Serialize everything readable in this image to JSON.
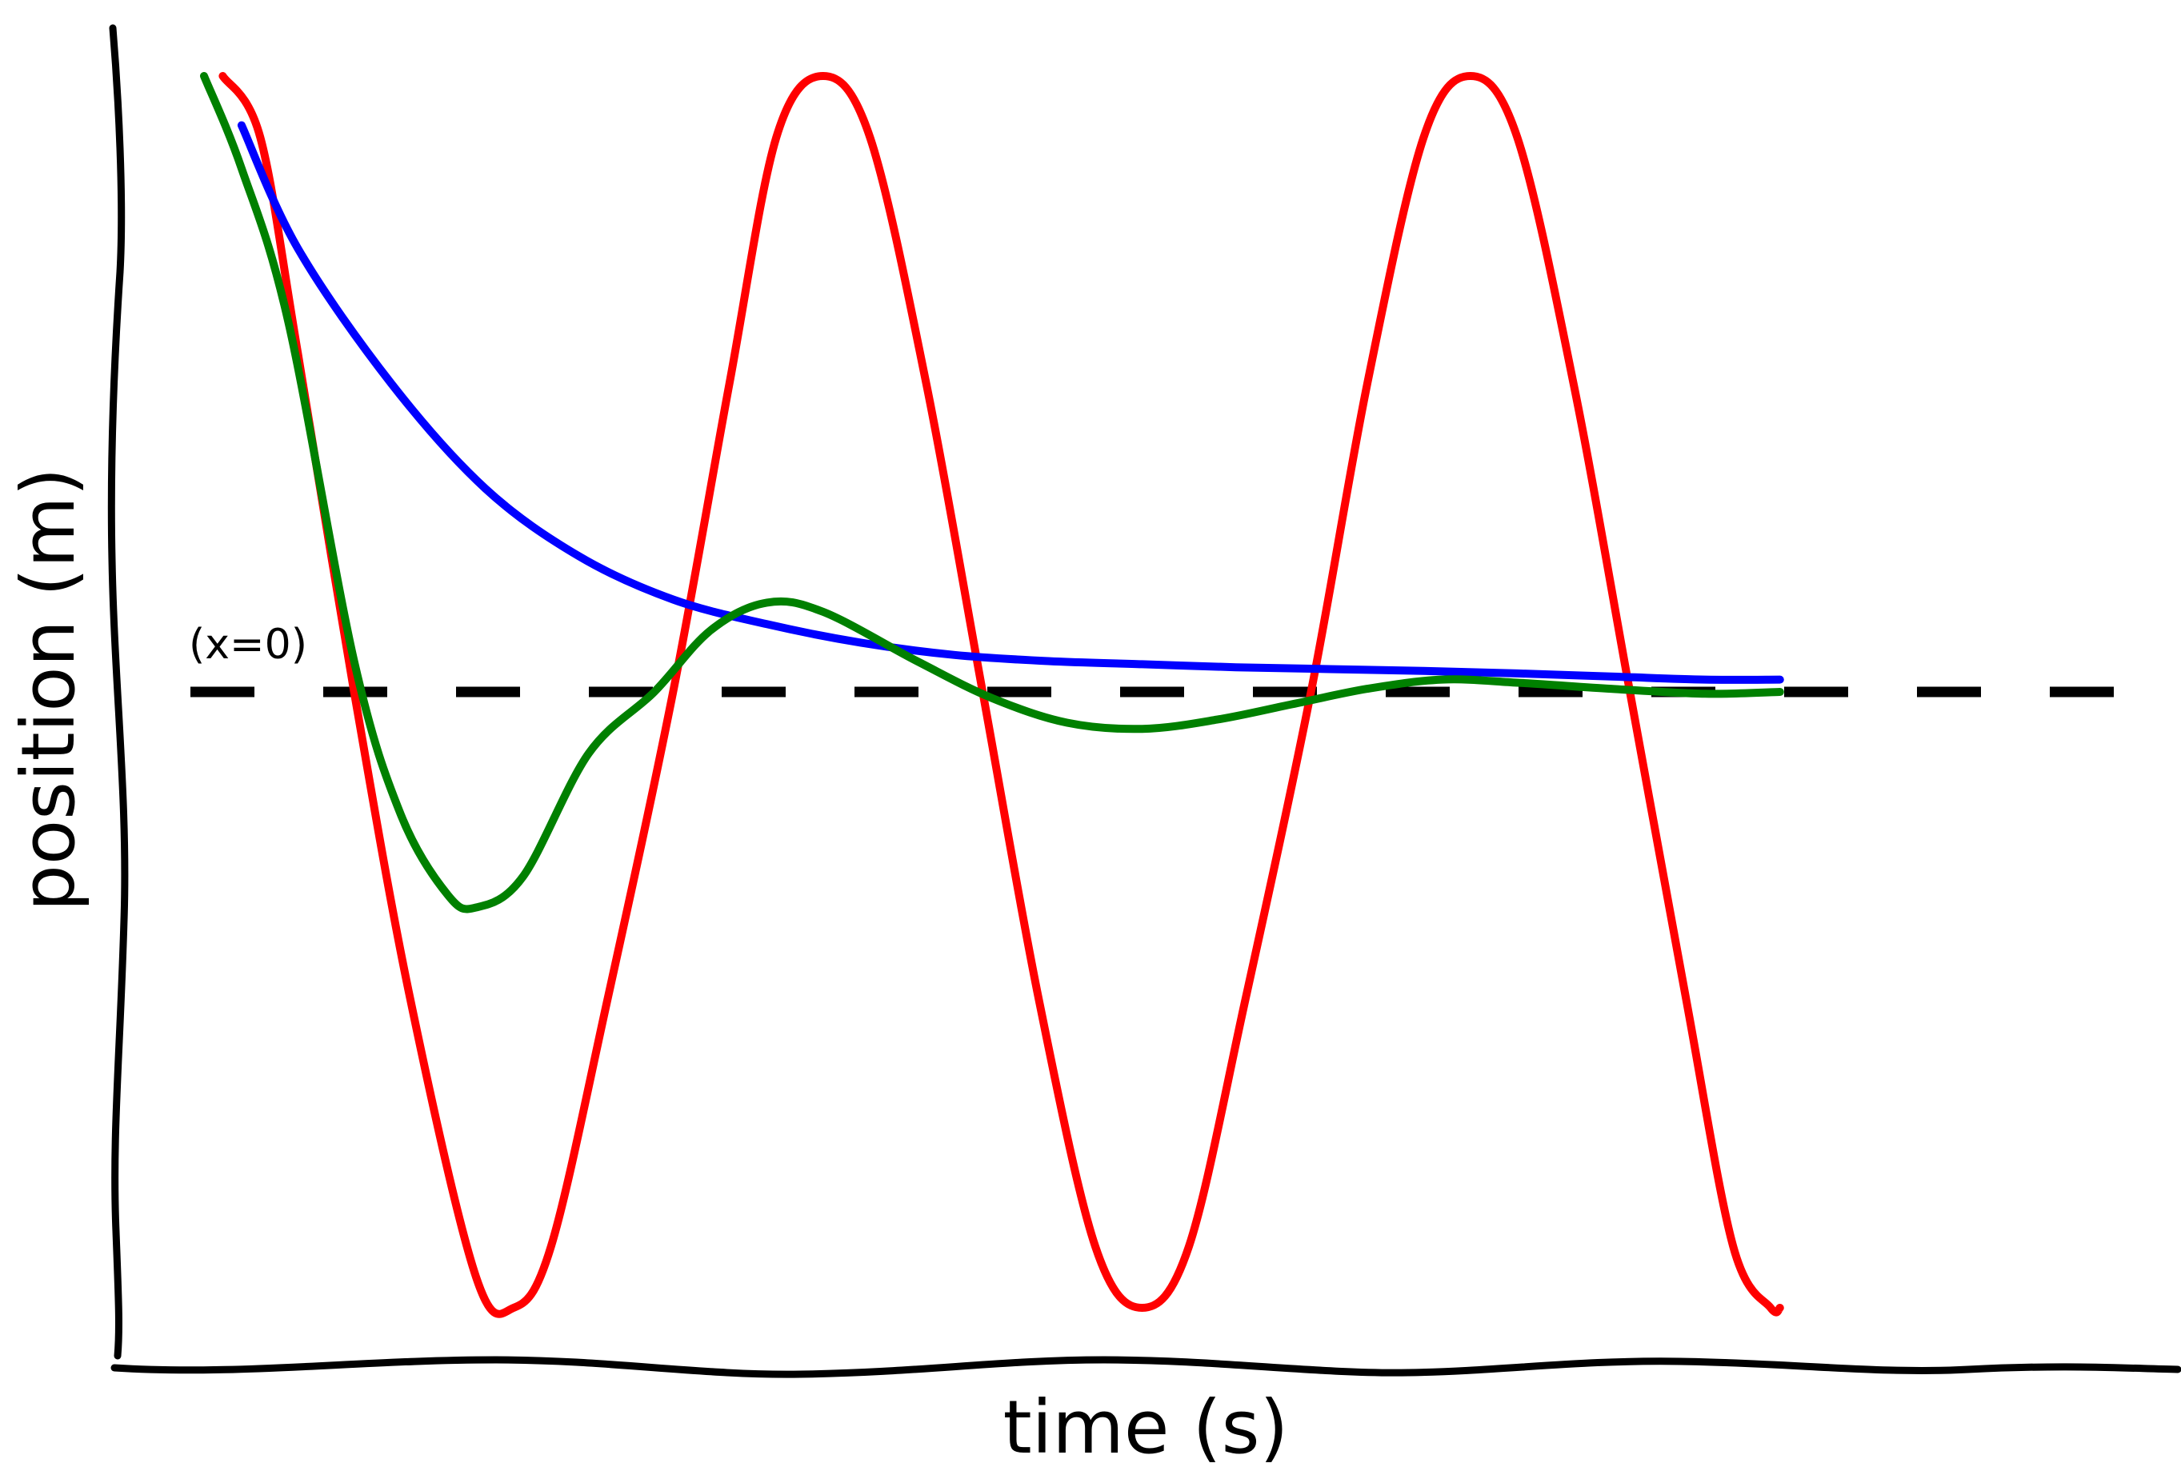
{
  "chart_data": {
    "type": "line",
    "xlabel": "time (s)",
    "ylabel": "position (m)",
    "xlim": [
      0,
      10
    ],
    "ylim": [
      -1.05,
      1.1
    ],
    "grid": false,
    "legend": "none",
    "reference_line": {
      "y": 0,
      "label": "(x=0)",
      "style": "dashed",
      "color": "#000000"
    },
    "series": [
      {
        "color": "#ff0000",
        "points": [
          [
            0.1,
            1.0
          ],
          [
            0.3,
            0.9
          ],
          [
            0.5,
            0.55
          ],
          [
            0.8,
            0.0
          ],
          [
            1.1,
            -0.5
          ],
          [
            1.45,
            -0.95
          ],
          [
            1.65,
            -1.0
          ],
          [
            1.85,
            -0.9
          ],
          [
            2.15,
            -0.5
          ],
          [
            2.5,
            0.0
          ],
          [
            2.8,
            0.5
          ],
          [
            3.05,
            0.9
          ],
          [
            3.3,
            1.0
          ],
          [
            3.55,
            0.9
          ],
          [
            3.85,
            0.5
          ],
          [
            4.15,
            0.0
          ],
          [
            4.45,
            -0.5
          ],
          [
            4.75,
            -0.9
          ],
          [
            5.0,
            -1.0
          ],
          [
            5.25,
            -0.9
          ],
          [
            5.55,
            -0.5
          ],
          [
            5.9,
            0.0
          ],
          [
            6.2,
            0.5
          ],
          [
            6.5,
            0.9
          ],
          [
            6.75,
            1.0
          ],
          [
            7.0,
            0.9
          ],
          [
            7.3,
            0.5
          ],
          [
            7.6,
            0.0
          ],
          [
            7.9,
            -0.5
          ],
          [
            8.15,
            -0.9
          ],
          [
            8.35,
            -1.0
          ],
          [
            8.4,
            -1.0
          ]
        ]
      },
      {
        "color": "#0000ff",
        "points": [
          [
            0.2,
            0.92
          ],
          [
            0.5,
            0.72
          ],
          [
            1.0,
            0.5
          ],
          [
            1.5,
            0.33
          ],
          [
            2.0,
            0.22
          ],
          [
            2.5,
            0.15
          ],
          [
            3.0,
            0.11
          ],
          [
            3.5,
            0.08
          ],
          [
            4.0,
            0.06
          ],
          [
            4.5,
            0.05
          ],
          [
            5.0,
            0.045
          ],
          [
            5.5,
            0.04
          ],
          [
            6.0,
            0.037
          ],
          [
            6.5,
            0.034
          ],
          [
            7.0,
            0.03
          ],
          [
            7.5,
            0.025
          ],
          [
            8.0,
            0.02
          ],
          [
            8.4,
            0.02
          ]
        ]
      },
      {
        "color": "#008000",
        "points": [
          [
            0.0,
            1.0
          ],
          [
            0.2,
            0.85
          ],
          [
            0.45,
            0.6
          ],
          [
            0.8,
            0.05
          ],
          [
            1.05,
            -0.2
          ],
          [
            1.3,
            -0.33
          ],
          [
            1.45,
            -0.35
          ],
          [
            1.7,
            -0.3
          ],
          [
            2.05,
            -0.1
          ],
          [
            2.4,
            0.0
          ],
          [
            2.7,
            0.1
          ],
          [
            3.0,
            0.145
          ],
          [
            3.3,
            0.13
          ],
          [
            3.8,
            0.05
          ],
          [
            4.2,
            -0.01
          ],
          [
            4.6,
            -0.05
          ],
          [
            5.0,
            -0.06
          ],
          [
            5.4,
            -0.045
          ],
          [
            5.8,
            -0.02
          ],
          [
            6.2,
            0.005
          ],
          [
            6.6,
            0.02
          ],
          [
            7.0,
            0.015
          ],
          [
            7.5,
            0.005
          ],
          [
            8.0,
            -0.003
          ],
          [
            8.4,
            0.0
          ]
        ]
      }
    ]
  }
}
